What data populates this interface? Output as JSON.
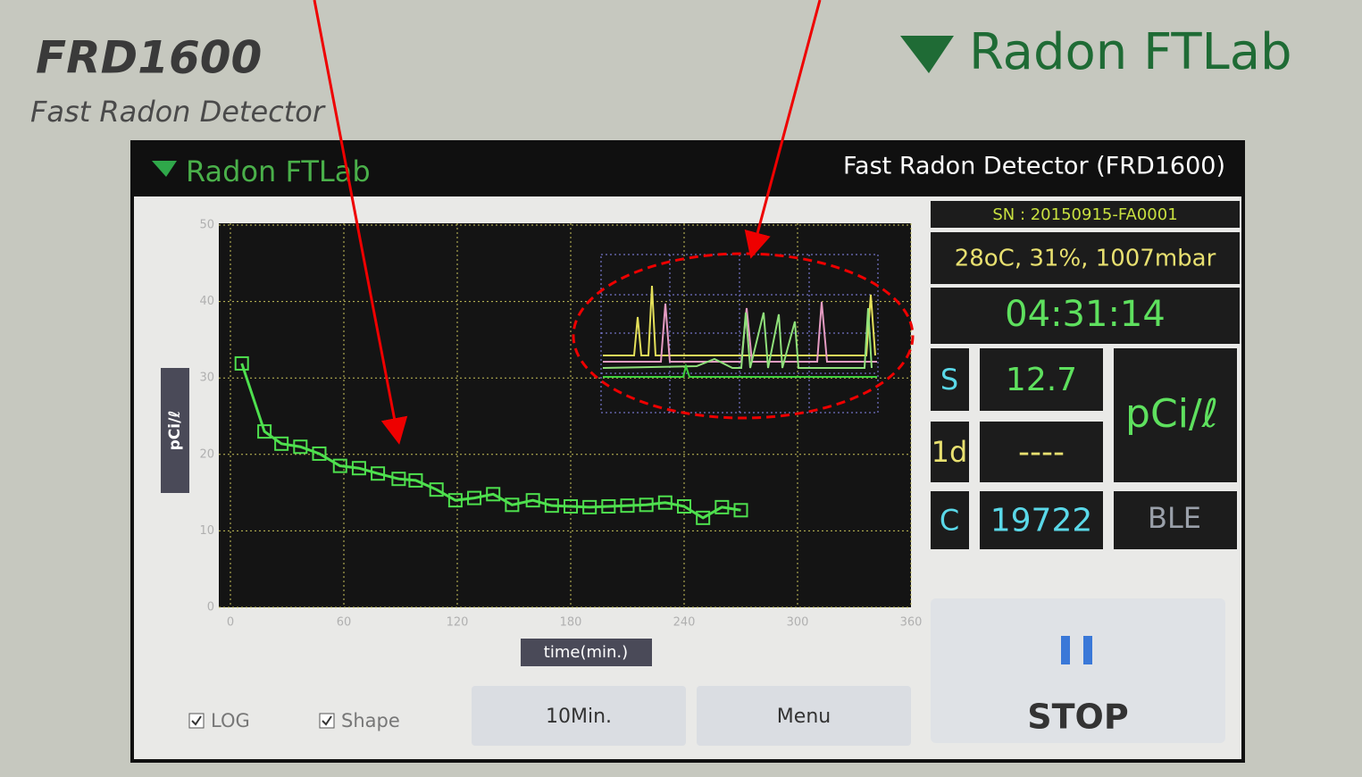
{
  "device": {
    "model": "FRD1600",
    "subtitle": "Fast Radon Detector",
    "brand": "Radon FTLab"
  },
  "screen": {
    "brand": "Radon FTLab",
    "title": "Fast Radon Detector (FRD1600)"
  },
  "chart_data": {
    "type": "line",
    "x_label": "time(min.)",
    "y_label": "pCi/ℓ",
    "color": "#4ee04e",
    "marker": "square",
    "x": [
      6,
      18,
      27,
      37,
      47,
      58,
      68,
      78,
      89,
      98,
      109,
      119,
      129,
      139,
      149,
      160,
      170,
      180,
      190,
      200,
      210,
      220,
      230,
      240,
      250,
      260,
      270
    ],
    "values": [
      31.9,
      23.0,
      21.4,
      21.0,
      20.1,
      18.5,
      18.2,
      17.5,
      16.8,
      16.6,
      15.4,
      14.0,
      14.3,
      14.8,
      13.4,
      14.0,
      13.3,
      13.2,
      13.1,
      13.2,
      13.3,
      13.4,
      13.7,
      13.2,
      11.7,
      13.1,
      12.7
    ],
    "xlim": [
      0,
      360
    ],
    "xticks": [
      0,
      60,
      120,
      180,
      240,
      300,
      360
    ],
    "ylim": [
      0,
      50
    ],
    "yticks": [
      0,
      10,
      20,
      30,
      40,
      50
    ],
    "grid": true
  },
  "panel": {
    "sn": "SN : 20150915-FA0001",
    "env": "28oC, 31%, 1007mbar",
    "time": "04:31:14",
    "rows": [
      {
        "key": "S",
        "value": "12.7"
      },
      {
        "key": "1d",
        "value": "----"
      },
      {
        "key": "C",
        "value": "19722"
      }
    ],
    "unit": "pCi/ℓ",
    "status": "BLE"
  },
  "controls": {
    "log": {
      "label": "LOG",
      "checked": true
    },
    "shape": {
      "label": "Shape",
      "checked": true
    },
    "button_10min": "10Min.",
    "button_menu": "Menu",
    "stop": "STOP"
  }
}
